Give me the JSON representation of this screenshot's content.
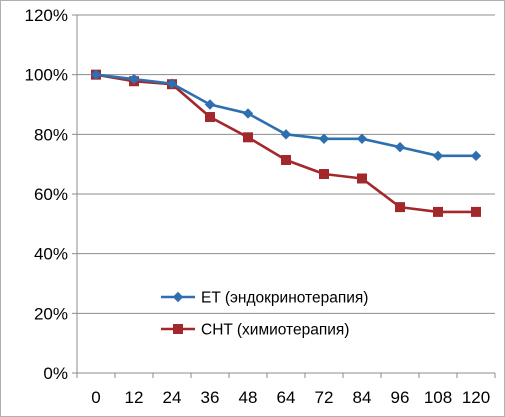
{
  "chart_data": {
    "type": "line",
    "title": "",
    "xlabel": "",
    "ylabel": "",
    "categories": [
      "0",
      "12",
      "24",
      "36",
      "48",
      "64",
      "72",
      "84",
      "96",
      "108",
      "120"
    ],
    "ylim": [
      0,
      1.2
    ],
    "yticks": [
      0,
      0.2,
      0.4,
      0.6,
      0.8,
      1.0,
      1.2
    ],
    "ytick_labels": [
      "0%",
      "20%",
      "40%",
      "60%",
      "80%",
      "100%",
      "120%"
    ],
    "grid": "horizontal",
    "legend_position": "bottom-center",
    "series": [
      {
        "name": "ET (эндокринотерапия)",
        "color": "#2e6fb0",
        "marker": "diamond",
        "values": [
          1.0,
          0.985,
          0.97,
          0.9,
          0.87,
          0.8,
          0.785,
          0.785,
          0.757,
          0.728,
          0.728
        ]
      },
      {
        "name": "CHT (химиотерапия)",
        "color": "#a3282c",
        "marker": "square",
        "values": [
          1.0,
          0.978,
          0.968,
          0.858,
          0.79,
          0.714,
          0.667,
          0.652,
          0.556,
          0.54,
          0.54
        ]
      }
    ]
  }
}
